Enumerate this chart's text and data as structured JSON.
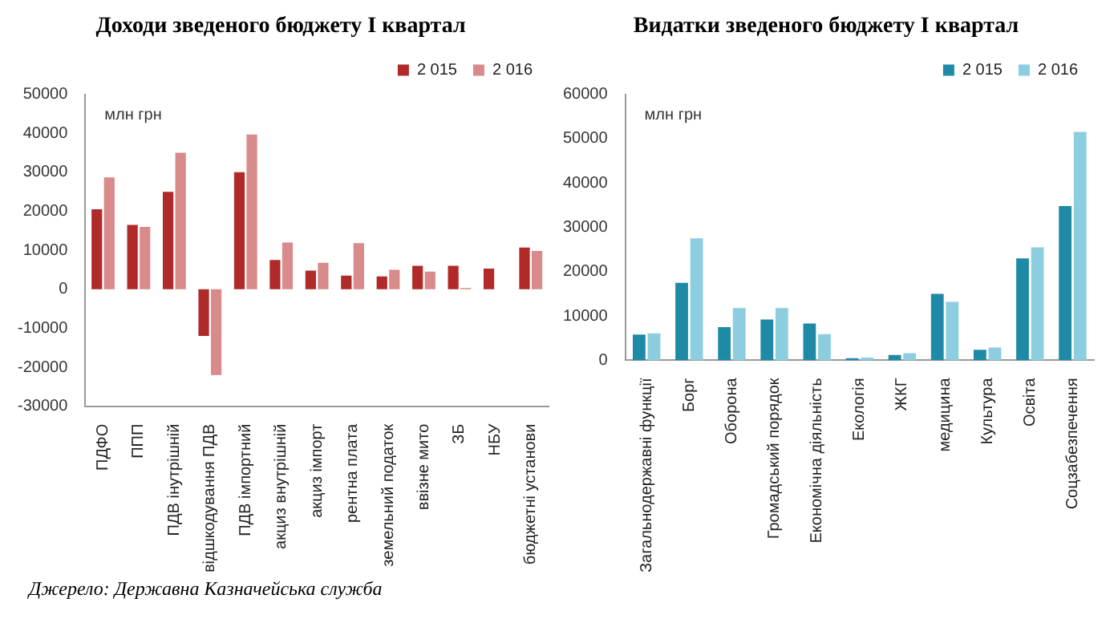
{
  "chart_data": [
    {
      "type": "bar",
      "title": "Доходи зведеного бюджету І квартал",
      "categories": [
        "ПДФО",
        "ППП",
        "ПДВ інутрішній",
        "відшкодування ПДВ",
        "ПДВ імпортний",
        "акциз внутрішній",
        "акциз імпорт",
        "рентна плата",
        "земельний податок",
        "ввізне мито",
        "ЗБ",
        "НБУ",
        "бюджетні установи"
      ],
      "series": [
        {
          "name": "2 015",
          "color": "#b02a2a",
          "values": [
            20500,
            16500,
            25000,
            -12000,
            30000,
            7500,
            4800,
            3500,
            3300,
            6000,
            6000,
            5300,
            10700
          ]
        },
        {
          "name": "2 016",
          "color": "#d98a8a",
          "values": [
            28700,
            16000,
            35000,
            -22000,
            39700,
            12000,
            6800,
            11800,
            5000,
            4500,
            300,
            null,
            9800
          ]
        }
      ],
      "ylim": [
        -30000,
        50000
      ],
      "yticks": [
        -30000,
        -20000,
        -10000,
        0,
        10000,
        20000,
        30000,
        40000,
        50000
      ],
      "grid": false,
      "legend": "top right",
      "annotations": [
        "млн грн",
        "Джерело: Державна Казначейська служба"
      ]
    },
    {
      "type": "bar",
      "title": "Видатки зведеного бюджету І квартал",
      "categories": [
        "Загальнодержавні функції",
        "Борг",
        "Оборона",
        "Громадський порядок",
        "Економічна діяльність",
        "Екологія",
        "ЖКГ",
        "медицина",
        "Культура",
        "Освіта",
        "Соцзабезпечення"
      ],
      "series": [
        {
          "name": "2 015",
          "color": "#1f8aa6",
          "values": [
            5800,
            17500,
            7500,
            9200,
            8300,
            500,
            1200,
            15000,
            2400,
            23000,
            34800
          ]
        },
        {
          "name": "2 016",
          "color": "#8ccde0",
          "values": [
            6100,
            27500,
            11800,
            11800,
            5900,
            600,
            1600,
            13200,
            2900,
            25500,
            51500
          ]
        }
      ],
      "ylim": [
        0,
        60000
      ],
      "yticks": [
        0,
        10000,
        20000,
        30000,
        40000,
        50000,
        60000
      ],
      "grid": false,
      "legend": "top right",
      "annotations": [
        "млн грн"
      ]
    }
  ]
}
